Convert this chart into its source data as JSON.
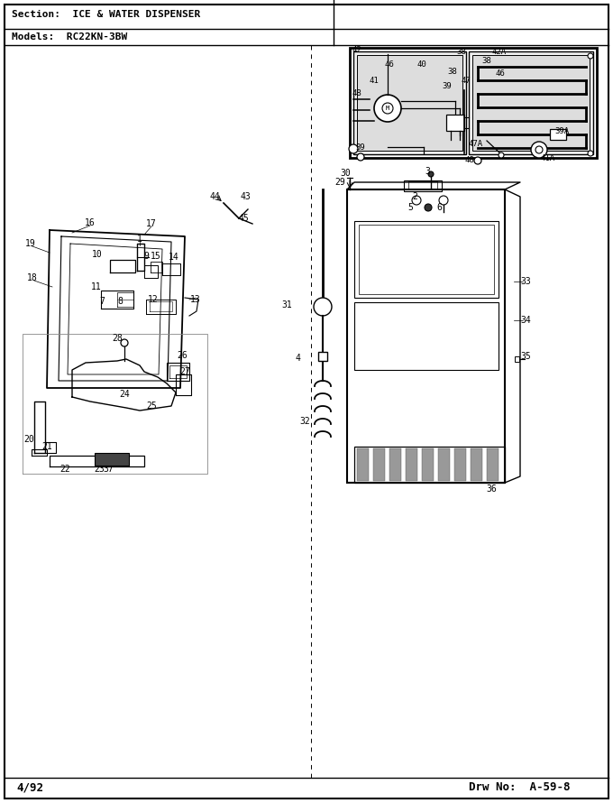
{
  "title_section": "Section:  ICE & WATER DISPENSER",
  "title_models": "Models:  RC22KN-3BW",
  "footer_left": "4/92",
  "footer_right": "Drw No:  A-59-8",
  "bg_color": "#ffffff",
  "border_color": "#000000",
  "text_color": "#000000",
  "fig_width": 6.8,
  "fig_height": 8.9,
  "dpi": 100
}
